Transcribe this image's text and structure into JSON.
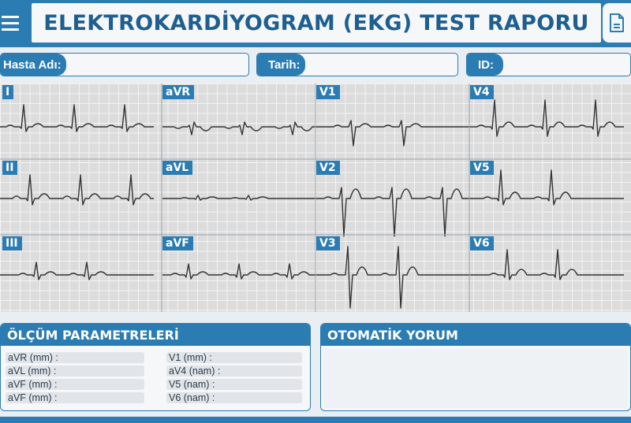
{
  "header": {
    "title": "ELEKTROKARDİYOGRAM (EKG) TEST RAPORU",
    "menu_icon": "hamburger-menu-icon",
    "report_icon": "document-icon"
  },
  "patient_info": {
    "name_label": "Hasta Adı:",
    "name_value": "",
    "date_label": "Tarih:",
    "date_value": "",
    "id_label": "ID:",
    "id_value": ""
  },
  "leads": [
    "I",
    "aVR",
    "V1",
    "V4",
    "II",
    "aVL",
    "V2",
    "V5",
    "III",
    "aVF",
    "V3",
    "V6"
  ],
  "measurements": {
    "title": "ÖLÇÜM PARAMETRELERİ",
    "left_rows": [
      "aVR (mm) :",
      "aVL (mm) :",
      "aVF (mm) :",
      "aVF (mm) :"
    ],
    "right_rows": [
      "V1 (mm) :",
      "aV4 (nam) :",
      "V5 (nam) :",
      "V6 (nam) :"
    ]
  },
  "interpretation": {
    "title": "OTOMATİK YORUM",
    "text": ""
  },
  "colors": {
    "accent": "#2b7cb3",
    "title_text": "#1e5f8f",
    "grid_background": "#dcdcdc",
    "trace": "#333333"
  }
}
